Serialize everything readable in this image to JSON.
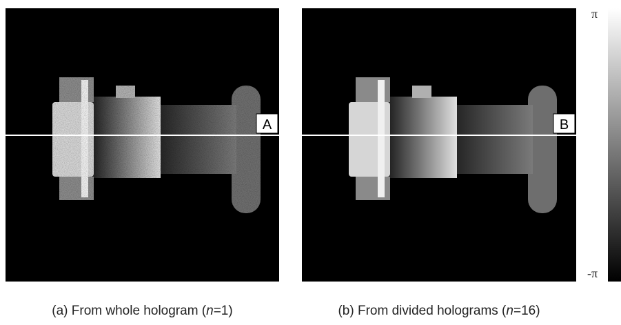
{
  "panels": [
    {
      "label": "A",
      "caption": [
        "(a) From whole hologram (",
        "n",
        "=1)"
      ]
    },
    {
      "label": "B",
      "caption": [
        "(b) From divided holograms (",
        "n",
        "=16)"
      ]
    }
  ],
  "colorbar": {
    "max_label": "π",
    "min_label": "-π"
  }
}
